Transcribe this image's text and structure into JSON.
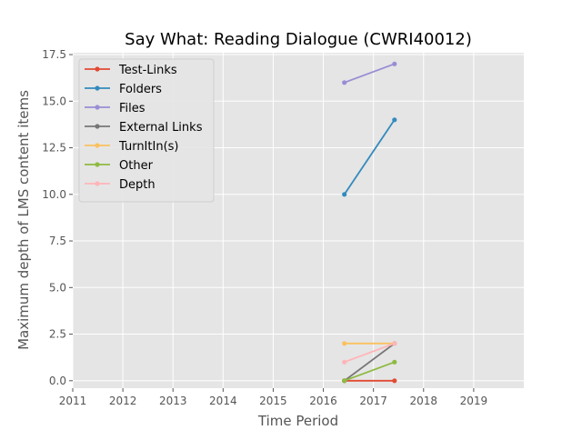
{
  "chart_data": {
    "type": "line",
    "title": "Say What: Reading Dialogue (CWRI40012)",
    "xlabel": "Time Period",
    "ylabel": "Maximum depth of LMS content items",
    "xlim": [
      2011,
      2020
    ],
    "ylim": [
      -0.4,
      17.6
    ],
    "x_ticks": [
      2011,
      2012,
      2013,
      2014,
      2015,
      2016,
      2017,
      2018,
      2019
    ],
    "x_tick_labels": [
      "2011",
      "2012",
      "2013",
      "2014",
      "2015",
      "2016",
      "2017",
      "2018",
      "2019"
    ],
    "y_ticks": [
      0,
      2.5,
      5,
      7.5,
      10,
      12.5,
      15,
      17.5
    ],
    "y_tick_labels": [
      "0.0",
      "2.5",
      "5.0",
      "7.5",
      "10.0",
      "12.5",
      "15.0",
      "17.5"
    ],
    "grid": true,
    "legend_position": "top-left",
    "series": [
      {
        "name": "Test-Links",
        "color": "#e24a33",
        "x": [
          2016.42,
          2017.42
        ],
        "y": [
          0,
          0
        ]
      },
      {
        "name": "Folders",
        "color": "#348abd",
        "x": [
          2016.42,
          2017.42
        ],
        "y": [
          10,
          14
        ]
      },
      {
        "name": "Files",
        "color": "#988ed5",
        "x": [
          2016.42,
          2017.42
        ],
        "y": [
          16,
          17
        ]
      },
      {
        "name": "External Links",
        "color": "#777777",
        "x": [
          2016.42,
          2017.42
        ],
        "y": [
          0,
          2
        ]
      },
      {
        "name": "TurnItIn(s)",
        "color": "#fbc15e",
        "x": [
          2016.42,
          2017.42
        ],
        "y": [
          2,
          2
        ]
      },
      {
        "name": "Other",
        "color": "#8eba42",
        "x": [
          2016.42,
          2017.42
        ],
        "y": [
          0,
          1
        ]
      },
      {
        "name": "Depth",
        "color": "#ffb5b8",
        "x": [
          2016.42,
          2017.42
        ],
        "y": [
          1,
          2
        ]
      }
    ]
  }
}
